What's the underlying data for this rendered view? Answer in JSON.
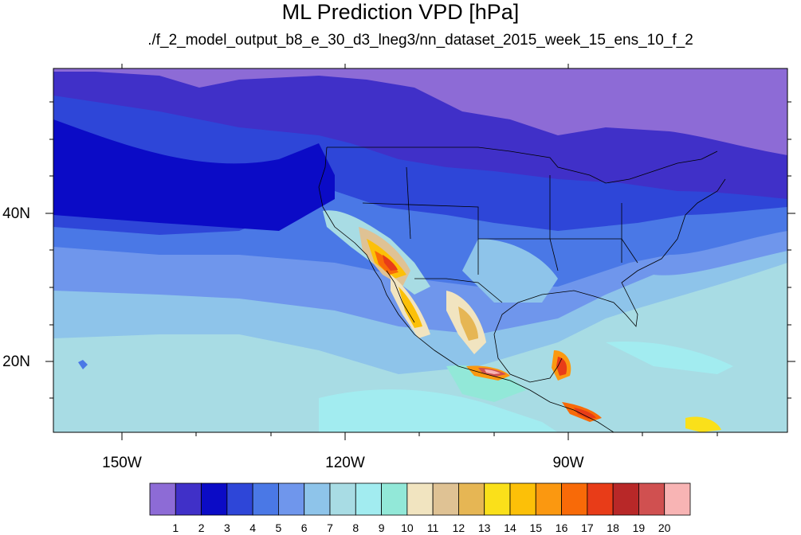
{
  "title": "ML Prediction VPD [hPa]",
  "subtitle": "./f_2_model_output_b8_e_30_d3_lneg3/nn_dataset_2015_week_15_ens_10_f_2",
  "lat_labels": [
    "40N",
    "20N"
  ],
  "lon_labels": [
    "150W",
    "120W",
    "90W"
  ],
  "colorbar": {
    "colors": [
      "#8d6bd6",
      "#4030c8",
      "#0b0bc6",
      "#2e46d8",
      "#4a78e6",
      "#6f96ec",
      "#8ec4ea",
      "#a8dce4",
      "#a2ecf0",
      "#92e8d8",
      "#f1e4c0",
      "#dfc294",
      "#e6b654",
      "#fae01a",
      "#fcc008",
      "#fb9810",
      "#f86a08",
      "#e83c18",
      "#b82828",
      "#d05050",
      "#f8b4b4"
    ],
    "labels": [
      "1",
      "2",
      "3",
      "4",
      "5",
      "6",
      "7",
      "8",
      "9",
      "10",
      "11",
      "12",
      "13",
      "14",
      "15",
      "16",
      "17",
      "18",
      "19",
      "20"
    ]
  }
}
